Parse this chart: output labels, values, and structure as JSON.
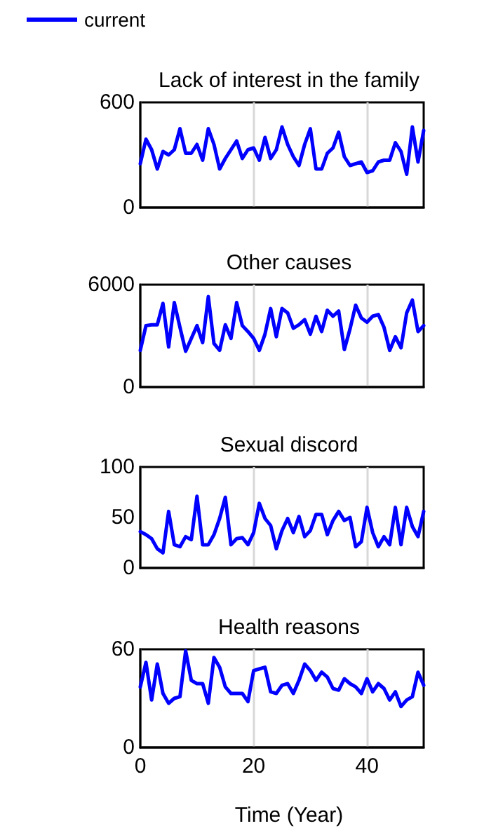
{
  "chart_data": [
    {
      "type": "line",
      "title": "Lack of interest in the family",
      "x": [
        0,
        1,
        2,
        3,
        4,
        5,
        6,
        7,
        8,
        9,
        10,
        11,
        12,
        13,
        14,
        15,
        16,
        17,
        18,
        19,
        20,
        21,
        22,
        23,
        24,
        25,
        26,
        27,
        28,
        29,
        30,
        31,
        32,
        33,
        34,
        35,
        36,
        37,
        38,
        39,
        40,
        41,
        42,
        43,
        44,
        45,
        46,
        47,
        48,
        49,
        50
      ],
      "legend": "top left",
      "tick_labels": "y",
      "grid": "x",
      "marker": "none",
      "line_style": "solid",
      "xlim": [
        0,
        50
      ],
      "xticks": [
        0,
        20,
        40
      ],
      "ylim": [
        0,
        600
      ],
      "yticks": [
        0,
        600
      ],
      "series": [
        {
          "name": "current",
          "color": "#0000ff",
          "values": [
            250,
            390,
            330,
            220,
            320,
            300,
            330,
            450,
            310,
            310,
            360,
            270,
            450,
            360,
            220,
            280,
            330,
            380,
            280,
            330,
            340,
            270,
            400,
            280,
            330,
            460,
            360,
            290,
            240,
            360,
            450,
            220,
            220,
            310,
            340,
            430,
            290,
            240,
            250,
            260,
            200,
            210,
            260,
            270,
            270,
            370,
            320,
            190,
            460,
            260,
            440
          ]
        }
      ]
    },
    {
      "type": "line",
      "title": "Other causes",
      "x": [
        0,
        1,
        2,
        3,
        4,
        5,
        6,
        7,
        8,
        9,
        10,
        11,
        12,
        13,
        14,
        15,
        16,
        17,
        18,
        19,
        20,
        21,
        22,
        23,
        24,
        25,
        26,
        27,
        28,
        29,
        30,
        31,
        32,
        33,
        34,
        35,
        36,
        37,
        38,
        39,
        40,
        41,
        42,
        43,
        44,
        45,
        46,
        47,
        48,
        49,
        50
      ],
      "tick_labels": "y",
      "grid": "x",
      "marker": "none",
      "line_style": "solid",
      "xlim": [
        0,
        50
      ],
      "xticks": [
        0,
        20,
        40
      ],
      "ylim": [
        0,
        6000
      ],
      "yticks": [
        0,
        6000
      ],
      "series": [
        {
          "color": "#0000ff",
          "values": [
            2150,
            3600,
            3650,
            3650,
            4900,
            2350,
            4950,
            3500,
            2100,
            2850,
            3600,
            2600,
            5300,
            2550,
            2150,
            3650,
            2850,
            4950,
            3600,
            3250,
            2850,
            2150,
            3100,
            4600,
            2950,
            4600,
            4350,
            3450,
            3650,
            3950,
            3100,
            4150,
            3250,
            4500,
            4150,
            4450,
            2200,
            3400,
            4800,
            4050,
            3800,
            4150,
            4250,
            3500,
            2150,
            2950,
            2300,
            4350,
            5100,
            3250,
            3600
          ]
        }
      ]
    },
    {
      "type": "line",
      "title": "Sexual discord",
      "x": [
        0,
        1,
        2,
        3,
        4,
        5,
        6,
        7,
        8,
        9,
        10,
        11,
        12,
        13,
        14,
        15,
        16,
        17,
        18,
        19,
        20,
        21,
        22,
        23,
        24,
        25,
        26,
        27,
        28,
        29,
        30,
        31,
        32,
        33,
        34,
        35,
        36,
        37,
        38,
        39,
        40,
        41,
        42,
        43,
        44,
        45,
        46,
        47,
        48,
        49,
        50
      ],
      "tick_labels": "y",
      "grid": "x",
      "marker": "none",
      "line_style": "solid",
      "xlim": [
        0,
        50
      ],
      "xticks": [
        0,
        20,
        40
      ],
      "ylim": [
        0,
        100
      ],
      "yticks": [
        0,
        50,
        100
      ],
      "series": [
        {
          "color": "#0000ff",
          "values": [
            36,
            33,
            29,
            19,
            15,
            56,
            23,
            21,
            31,
            28,
            71,
            23,
            23,
            33,
            49,
            70,
            23,
            29,
            30,
            23,
            35,
            64,
            49,
            42,
            19,
            37,
            49,
            35,
            51,
            31,
            37,
            53,
            53,
            33,
            47,
            56,
            47,
            50,
            21,
            26,
            60,
            35,
            21,
            31,
            23,
            60,
            23,
            60,
            41,
            31,
            56
          ]
        }
      ]
    },
    {
      "type": "line",
      "title": "Health reasons",
      "xlabel": "Time (Year)",
      "x": [
        0,
        1,
        2,
        3,
        4,
        5,
        6,
        7,
        8,
        9,
        10,
        11,
        12,
        13,
        14,
        15,
        16,
        17,
        18,
        19,
        20,
        21,
        22,
        23,
        24,
        25,
        26,
        27,
        28,
        29,
        30,
        31,
        32,
        33,
        34,
        35,
        36,
        37,
        38,
        39,
        40,
        41,
        42,
        43,
        44,
        45,
        46,
        47,
        48,
        49,
        50
      ],
      "grid": "x",
      "marker": "none",
      "line_style": "solid",
      "xlim": [
        0,
        50
      ],
      "xticks": [
        0,
        20,
        40
      ],
      "ylim": [
        0,
        60
      ],
      "yticks": [
        0,
        60
      ],
      "series": [
        {
          "color": "#0000ff",
          "values": [
            37,
            52,
            29,
            51,
            33,
            27,
            30,
            31,
            59,
            41,
            39,
            39,
            27,
            55,
            49,
            37,
            33,
            33,
            33,
            28,
            47,
            48,
            49,
            34,
            33,
            38,
            39,
            33,
            41,
            51,
            47,
            41,
            46,
            43,
            36,
            35,
            42,
            39,
            37,
            33,
            42,
            34,
            39,
            36,
            29,
            34,
            25,
            29,
            31,
            46,
            38
          ]
        }
      ]
    }
  ]
}
